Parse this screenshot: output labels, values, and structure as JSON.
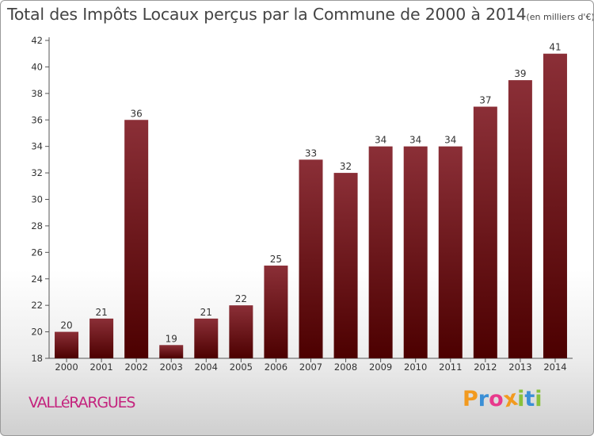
{
  "chart_data": {
    "type": "bar",
    "title": "Total des Impôts Locaux perçus par la Commune de 2000 à 2014",
    "unit_label": "(en milliers d'€)",
    "categories": [
      "2000",
      "2001",
      "2002",
      "2003",
      "2004",
      "2005",
      "2006",
      "2007",
      "2008",
      "2009",
      "2010",
      "2011",
      "2012",
      "2013",
      "2014"
    ],
    "values": [
      20,
      21,
      36,
      19,
      21,
      22,
      25,
      33,
      32,
      34,
      34,
      34,
      37,
      39,
      41
    ],
    "value_labels": [
      "20",
      "21",
      "36",
      "19",
      "21",
      "22",
      "25",
      "33",
      "32",
      "34",
      "34",
      "34",
      "37",
      "39",
      "41"
    ],
    "y_ticks": [
      "18",
      "20",
      "22",
      "24",
      "26",
      "28",
      "30",
      "32",
      "34",
      "36",
      "38",
      "40",
      "42"
    ],
    "ylim": [
      18,
      42
    ],
    "xlabel": "",
    "ylabel": "",
    "grid": false,
    "legend": "none",
    "bar_color_top": "#8b2f37",
    "bar_color_bottom": "#4c0000"
  },
  "footer": {
    "commune": "VALLéRARGUES",
    "commune_color": "#c4247e"
  },
  "logo": {
    "letters": [
      "P",
      "r",
      "o",
      "x",
      "i",
      "t",
      "i"
    ],
    "colors": [
      "#f29a1f",
      "#3a8fd6",
      "#e8398c",
      "#f29a1f",
      "#89c13c",
      "#3a8fd6",
      "#89c13c"
    ]
  }
}
